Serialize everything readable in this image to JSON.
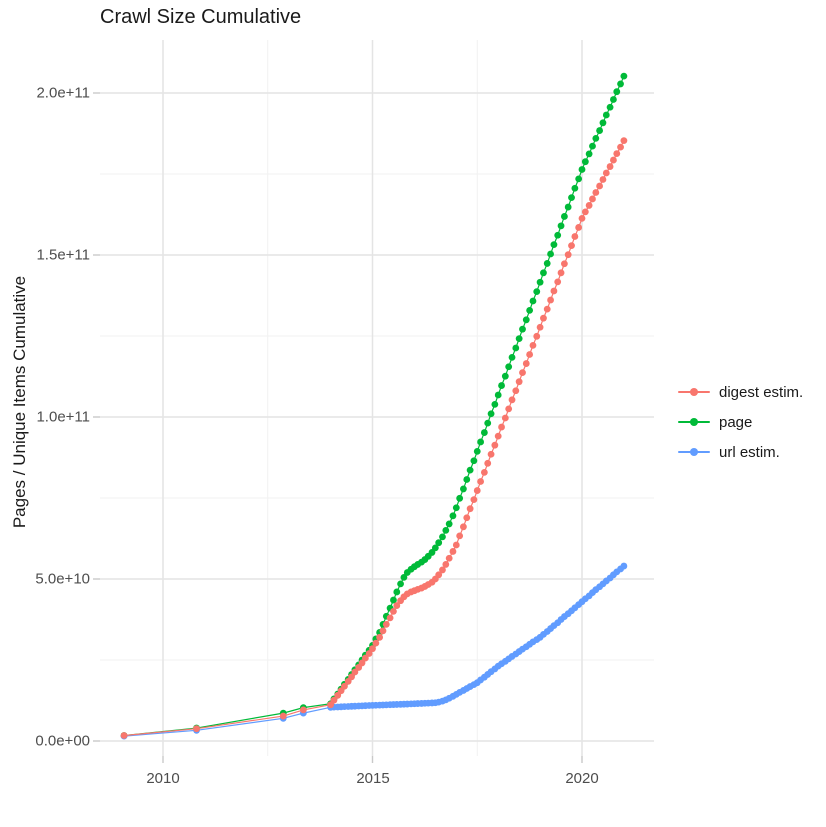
{
  "title": "Crawl Size Cumulative",
  "axes": {
    "y_title": "Pages / Unique Items Cumulative",
    "x_title": "",
    "x": {
      "labels": [
        "2010",
        "2015",
        "2020"
      ],
      "values": [
        2010,
        2015,
        2020
      ],
      "minor": [
        2012.5,
        2017.5
      ]
    },
    "y": {
      "labels": [
        "0.0e+00",
        "5.0e+10",
        "1.0e+11",
        "1.5e+11",
        "2.0e+11"
      ],
      "values": [
        0,
        50000000000.0,
        100000000000.0,
        150000000000.0,
        200000000000.0
      ],
      "minor": [
        25000000000.0,
        75000000000.0,
        125000000000.0,
        175000000000.0
      ]
    }
  },
  "legend": {
    "position": "right",
    "items": [
      {
        "label": "digest estim.",
        "color": "#F8766D"
      },
      {
        "label": "page",
        "color": "#00BA38"
      },
      {
        "label": "url estim.",
        "color": "#619CFF"
      }
    ]
  },
  "chart_data": {
    "type": "line",
    "markers": true,
    "title": "Crawl Size Cumulative",
    "xlabel": "",
    "ylabel": "Pages / Unique Items Cumulative",
    "xlim": [
      2008.5,
      2021.75
    ],
    "ylim": [
      0,
      216000000000.0
    ],
    "grid": true,
    "legend_position": "right",
    "values_unit": "1e9 (billions of pages / unique items)",
    "series": [
      {
        "name": "digest estim.",
        "color": "#F8766D",
        "points": [
          [
            2009.07,
            1.7
          ],
          [
            2010.8,
            3.8
          ],
          [
            2012.87,
            7.7
          ],
          [
            2013.35,
            9.6
          ],
          [
            2014,
            11.2
          ],
          [
            2014.08,
            12.6
          ],
          [
            2014.17,
            14.1
          ],
          [
            2014.25,
            15.5
          ],
          [
            2014.33,
            16.9
          ],
          [
            2014.42,
            18.4
          ],
          [
            2014.5,
            19.8
          ],
          [
            2014.58,
            21.3
          ],
          [
            2014.67,
            22.7
          ],
          [
            2014.75,
            24.1
          ],
          [
            2014.83,
            25.6
          ],
          [
            2014.92,
            27
          ],
          [
            2015,
            28.5
          ],
          [
            2015.08,
            30.2
          ],
          [
            2015.17,
            32
          ],
          [
            2015.25,
            34
          ],
          [
            2015.33,
            36
          ],
          [
            2015.42,
            38
          ],
          [
            2015.5,
            40
          ],
          [
            2015.58,
            41.8
          ],
          [
            2015.67,
            43.3
          ],
          [
            2015.75,
            44.5
          ],
          [
            2015.83,
            45.4
          ],
          [
            2015.92,
            46
          ],
          [
            2016,
            46.4
          ],
          [
            2016.08,
            46.8
          ],
          [
            2016.17,
            47.2
          ],
          [
            2016.25,
            47.7
          ],
          [
            2016.33,
            48.3
          ],
          [
            2016.42,
            49
          ],
          [
            2016.5,
            50
          ],
          [
            2016.58,
            51.3
          ],
          [
            2016.67,
            52.8
          ],
          [
            2016.75,
            54.5
          ],
          [
            2016.83,
            56.4
          ],
          [
            2016.92,
            58.5
          ],
          [
            2017,
            60.5
          ],
          [
            2017.08,
            63.3
          ],
          [
            2017.17,
            66.1
          ],
          [
            2017.25,
            68.9
          ],
          [
            2017.33,
            71.7
          ],
          [
            2017.42,
            74.5
          ],
          [
            2017.5,
            77.3
          ],
          [
            2017.58,
            80.1
          ],
          [
            2017.67,
            82.9
          ],
          [
            2017.75,
            85.7
          ],
          [
            2017.83,
            88.5
          ],
          [
            2017.92,
            91.3
          ],
          [
            2018,
            94.1
          ],
          [
            2018.08,
            96.9
          ],
          [
            2018.17,
            99.7
          ],
          [
            2018.25,
            102.5
          ],
          [
            2018.33,
            105.3
          ],
          [
            2018.42,
            108.1
          ],
          [
            2018.5,
            110.9
          ],
          [
            2018.58,
            113.7
          ],
          [
            2018.67,
            116.5
          ],
          [
            2018.75,
            119.3
          ],
          [
            2018.83,
            122.1
          ],
          [
            2018.92,
            124.9
          ],
          [
            2019,
            127.7
          ],
          [
            2019.08,
            130.5
          ],
          [
            2019.17,
            133.3
          ],
          [
            2019.25,
            136.1
          ],
          [
            2019.33,
            138.9
          ],
          [
            2019.42,
            141.7
          ],
          [
            2019.5,
            144.5
          ],
          [
            2019.58,
            147.3
          ],
          [
            2019.67,
            150.1
          ],
          [
            2019.75,
            152.9
          ],
          [
            2019.83,
            155.7
          ],
          [
            2019.92,
            158.5
          ],
          [
            2020,
            161.3
          ],
          [
            2020.08,
            163.3
          ],
          [
            2020.17,
            165.3
          ],
          [
            2020.25,
            167.3
          ],
          [
            2020.33,
            169.3
          ],
          [
            2020.42,
            171.3
          ],
          [
            2020.5,
            173.3
          ],
          [
            2020.58,
            175.3
          ],
          [
            2020.67,
            177.3
          ],
          [
            2020.75,
            179.3
          ],
          [
            2020.83,
            181.3
          ],
          [
            2020.92,
            183.3
          ],
          [
            2021,
            185.3
          ]
        ]
      },
      {
        "name": "page",
        "color": "#00BA38",
        "points": [
          [
            2009.07,
            1.7
          ],
          [
            2010.8,
            4
          ],
          [
            2012.87,
            8.6
          ],
          [
            2013.35,
            10.3
          ],
          [
            2014,
            11.5
          ],
          [
            2014.08,
            13
          ],
          [
            2014.17,
            14.5
          ],
          [
            2014.25,
            16
          ],
          [
            2014.33,
            17.5
          ],
          [
            2014.42,
            19
          ],
          [
            2014.5,
            20.5
          ],
          [
            2014.58,
            22
          ],
          [
            2014.67,
            23.5
          ],
          [
            2014.75,
            25
          ],
          [
            2014.83,
            26.5
          ],
          [
            2014.92,
            28
          ],
          [
            2015,
            29.5
          ],
          [
            2015.08,
            31.5
          ],
          [
            2015.17,
            33.5
          ],
          [
            2015.25,
            36
          ],
          [
            2015.33,
            38.5
          ],
          [
            2015.42,
            41
          ],
          [
            2015.5,
            43.5
          ],
          [
            2015.58,
            46
          ],
          [
            2015.67,
            48.5
          ],
          [
            2015.75,
            50.5
          ],
          [
            2015.83,
            52
          ],
          [
            2015.92,
            53
          ],
          [
            2016,
            53.8
          ],
          [
            2016.08,
            54.5
          ],
          [
            2016.17,
            55.2
          ],
          [
            2016.25,
            56
          ],
          [
            2016.33,
            57
          ],
          [
            2016.42,
            58.2
          ],
          [
            2016.5,
            59.6
          ],
          [
            2016.58,
            61.2
          ],
          [
            2016.67,
            63
          ],
          [
            2016.75,
            65
          ],
          [
            2016.83,
            67
          ],
          [
            2016.92,
            69.5
          ],
          [
            2017,
            72
          ],
          [
            2017.08,
            74.9
          ],
          [
            2017.17,
            77.8
          ],
          [
            2017.25,
            80.7
          ],
          [
            2017.33,
            83.6
          ],
          [
            2017.42,
            86.5
          ],
          [
            2017.5,
            89.4
          ],
          [
            2017.58,
            92.3
          ],
          [
            2017.67,
            95.2
          ],
          [
            2017.75,
            98.1
          ],
          [
            2017.83,
            101
          ],
          [
            2017.92,
            103.9
          ],
          [
            2018,
            106.8
          ],
          [
            2018.08,
            109.7
          ],
          [
            2018.17,
            112.6
          ],
          [
            2018.25,
            115.5
          ],
          [
            2018.33,
            118.4
          ],
          [
            2018.42,
            121.3
          ],
          [
            2018.5,
            124.2
          ],
          [
            2018.58,
            127.1
          ],
          [
            2018.67,
            130
          ],
          [
            2018.75,
            132.9
          ],
          [
            2018.83,
            135.8
          ],
          [
            2018.92,
            138.7
          ],
          [
            2019,
            141.6
          ],
          [
            2019.08,
            144.5
          ],
          [
            2019.17,
            147.4
          ],
          [
            2019.25,
            150.3
          ],
          [
            2019.33,
            153.2
          ],
          [
            2019.42,
            156.1
          ],
          [
            2019.5,
            159
          ],
          [
            2019.58,
            161.9
          ],
          [
            2019.67,
            164.8
          ],
          [
            2019.75,
            167.7
          ],
          [
            2019.83,
            170.6
          ],
          [
            2019.92,
            173.5
          ],
          [
            2020,
            176.4
          ],
          [
            2020.08,
            178.8
          ],
          [
            2020.17,
            181.2
          ],
          [
            2020.25,
            183.6
          ],
          [
            2020.33,
            186
          ],
          [
            2020.42,
            188.4
          ],
          [
            2020.5,
            190.8
          ],
          [
            2020.58,
            193.2
          ],
          [
            2020.67,
            195.6
          ],
          [
            2020.75,
            198
          ],
          [
            2020.83,
            200.4
          ],
          [
            2020.92,
            202.8
          ],
          [
            2021,
            205.2
          ]
        ]
      },
      {
        "name": "url estim.",
        "color": "#619CFF",
        "points": [
          [
            2009.07,
            1.5
          ],
          [
            2010.8,
            3.3
          ],
          [
            2012.87,
            7
          ],
          [
            2013.35,
            8.6
          ],
          [
            2014,
            10.4
          ],
          [
            2014.08,
            10.45
          ],
          [
            2014.17,
            10.5
          ],
          [
            2014.25,
            10.55
          ],
          [
            2014.33,
            10.6
          ],
          [
            2014.42,
            10.65
          ],
          [
            2014.5,
            10.7
          ],
          [
            2014.58,
            10.75
          ],
          [
            2014.67,
            10.8
          ],
          [
            2014.75,
            10.85
          ],
          [
            2014.83,
            10.9
          ],
          [
            2014.92,
            10.95
          ],
          [
            2015,
            11
          ],
          [
            2015.08,
            11.04
          ],
          [
            2015.17,
            11.08
          ],
          [
            2015.25,
            11.12
          ],
          [
            2015.33,
            11.16
          ],
          [
            2015.42,
            11.2
          ],
          [
            2015.5,
            11.24
          ],
          [
            2015.58,
            11.28
          ],
          [
            2015.67,
            11.32
          ],
          [
            2015.75,
            11.36
          ],
          [
            2015.83,
            11.4
          ],
          [
            2015.92,
            11.45
          ],
          [
            2016,
            11.5
          ],
          [
            2016.08,
            11.55
          ],
          [
            2016.17,
            11.6
          ],
          [
            2016.25,
            11.65
          ],
          [
            2016.33,
            11.7
          ],
          [
            2016.42,
            11.75
          ],
          [
            2016.5,
            11.8
          ],
          [
            2016.58,
            12
          ],
          [
            2016.67,
            12.3
          ],
          [
            2016.75,
            12.7
          ],
          [
            2016.83,
            13.2
          ],
          [
            2016.92,
            13.8
          ],
          [
            2017,
            14.4
          ],
          [
            2017.08,
            15
          ],
          [
            2017.17,
            15.6
          ],
          [
            2017.25,
            16.2
          ],
          [
            2017.33,
            16.8
          ],
          [
            2017.42,
            17.4
          ],
          [
            2017.5,
            18
          ],
          [
            2017.58,
            18.85
          ],
          [
            2017.67,
            19.7
          ],
          [
            2017.75,
            20.55
          ],
          [
            2017.83,
            21.4
          ],
          [
            2017.92,
            22.25
          ],
          [
            2018,
            23.1
          ],
          [
            2018.08,
            23.85
          ],
          [
            2018.17,
            24.6
          ],
          [
            2018.25,
            25.35
          ],
          [
            2018.33,
            26.1
          ],
          [
            2018.42,
            26.85
          ],
          [
            2018.5,
            27.6
          ],
          [
            2018.58,
            28.35
          ],
          [
            2018.67,
            29.1
          ],
          [
            2018.75,
            29.85
          ],
          [
            2018.83,
            30.6
          ],
          [
            2018.92,
            31.3
          ],
          [
            2019,
            32
          ],
          [
            2019.08,
            32.9
          ],
          [
            2019.17,
            33.8
          ],
          [
            2019.25,
            34.7
          ],
          [
            2019.33,
            35.6
          ],
          [
            2019.42,
            36.5
          ],
          [
            2019.5,
            37.5
          ],
          [
            2019.58,
            38.4
          ],
          [
            2019.67,
            39.3
          ],
          [
            2019.75,
            40.2
          ],
          [
            2019.83,
            41.1
          ],
          [
            2019.92,
            42.1
          ],
          [
            2020,
            43
          ],
          [
            2020.08,
            43.9
          ],
          [
            2020.17,
            44.8
          ],
          [
            2020.25,
            45.8
          ],
          [
            2020.33,
            46.7
          ],
          [
            2020.42,
            47.6
          ],
          [
            2020.5,
            48.5
          ],
          [
            2020.58,
            49.4
          ],
          [
            2020.67,
            50.3
          ],
          [
            2020.75,
            51.3
          ],
          [
            2020.83,
            52.2
          ],
          [
            2020.92,
            53.1
          ],
          [
            2021,
            54
          ]
        ]
      }
    ]
  }
}
